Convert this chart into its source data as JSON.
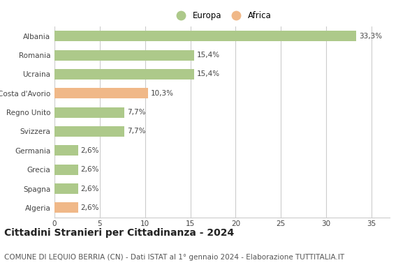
{
  "categories": [
    "Albania",
    "Romania",
    "Ucraina",
    "Costa d'Avorio",
    "Regno Unito",
    "Svizzera",
    "Germania",
    "Grecia",
    "Spagna",
    "Algeria"
  ],
  "values": [
    33.3,
    15.4,
    15.4,
    10.3,
    7.7,
    7.7,
    2.6,
    2.6,
    2.6,
    2.6
  ],
  "labels": [
    "33,3%",
    "15,4%",
    "15,4%",
    "10,3%",
    "7,7%",
    "7,7%",
    "2,6%",
    "2,6%",
    "2,6%",
    "2,6%"
  ],
  "colors": [
    "#adc98a",
    "#adc98a",
    "#adc98a",
    "#f0b888",
    "#adc98a",
    "#adc98a",
    "#adc98a",
    "#adc98a",
    "#adc98a",
    "#f0b888"
  ],
  "europa_color": "#adc98a",
  "africa_color": "#f0b888",
  "xlim": [
    0,
    37
  ],
  "xticks": [
    0,
    5,
    10,
    15,
    20,
    25,
    30,
    35
  ],
  "title": "Cittadini Stranieri per Cittadinanza - 2024",
  "subtitle": "COMUNE DI LEQUIO BERRIA (CN) - Dati ISTAT al 1° gennaio 2024 - Elaborazione TUTTITALIA.IT",
  "legend_europa": "Europa",
  "legend_africa": "Africa",
  "background_color": "#ffffff",
  "grid_color": "#cccccc",
  "bar_height": 0.55,
  "label_fontsize": 7.5,
  "tick_fontsize": 7.5,
  "title_fontsize": 10,
  "subtitle_fontsize": 7.5
}
